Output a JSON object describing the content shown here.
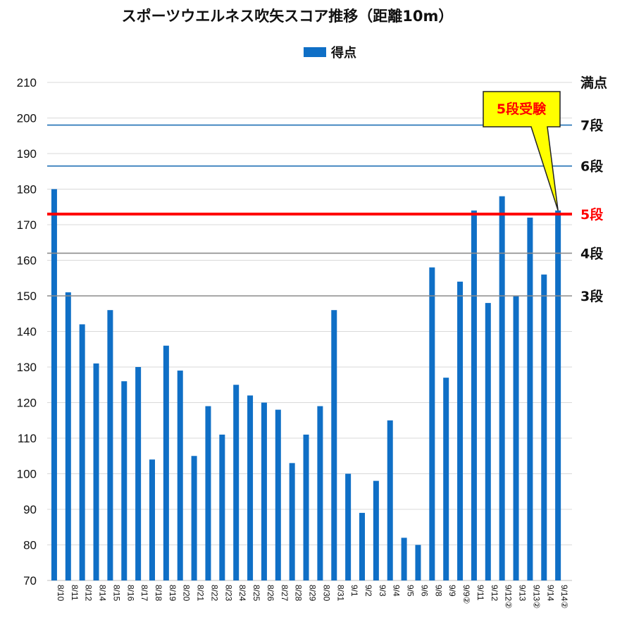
{
  "chart_data": {
    "type": "bar",
    "title": "スポーツウエルネス吹矢スコア推移（距離10m）",
    "legend": [
      "得点"
    ],
    "legend_position": "top-center",
    "ylim": [
      70,
      210
    ],
    "yticks": [
      70,
      80,
      90,
      100,
      110,
      120,
      130,
      140,
      150,
      160,
      170,
      180,
      190,
      200,
      210
    ],
    "grid": true,
    "categories": [
      "8/10",
      "8/11",
      "8/12",
      "8/14",
      "8/15",
      "8/16",
      "8/17",
      "8/18",
      "8/19",
      "8/20",
      "8/21",
      "8/22",
      "8/23",
      "8/24",
      "8/25",
      "8/26",
      "8/27",
      "8/28",
      "8/29",
      "8/30",
      "8/31",
      "9/1",
      "9/2",
      "9/3",
      "9/4",
      "9/5",
      "9/6",
      "9/8",
      "9/9",
      "9/9②",
      "9/11",
      "9/12",
      "9/12②",
      "9/13",
      "9/13②",
      "9/14",
      "9/14②"
    ],
    "series": [
      {
        "name": "得点",
        "color": "#0f6fc6",
        "values": [
          180,
          151,
          142,
          131,
          146,
          126,
          130,
          104,
          136,
          129,
          105,
          119,
          111,
          125,
          122,
          120,
          118,
          103,
          111,
          119,
          146,
          100,
          89,
          98,
          115,
          82,
          80,
          158,
          127,
          154,
          174,
          148,
          178,
          150,
          172,
          156,
          174
        ]
      }
    ],
    "reference_lines": [
      {
        "label": "満点",
        "value": 210,
        "color": null
      },
      {
        "label": "7段",
        "value": 198,
        "color": "#1f6fb5"
      },
      {
        "label": "6段",
        "value": 186.5,
        "color": "#1f6fb5"
      },
      {
        "label": "5段",
        "value": 173,
        "color": "#ff0000"
      },
      {
        "label": "4段",
        "value": 162,
        "color": "#8c8c8c"
      },
      {
        "label": "3段",
        "value": 150,
        "color": "#8c8c8c"
      }
    ],
    "annotation": {
      "text": "5段受験",
      "category": "9/14②",
      "value": 174,
      "fill": "#ffff00",
      "text_color": "#ff0000"
    }
  }
}
